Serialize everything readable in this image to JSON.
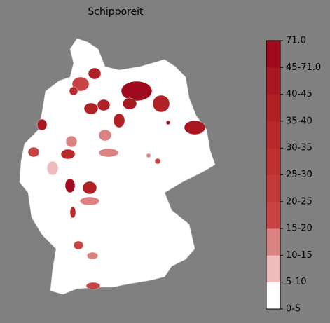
{
  "title": "Schipporeit",
  "legend": {
    "ticks": [
      "0-5",
      "5-10",
      "10-15",
      "15-20",
      "20-25",
      "25-30",
      "30-35",
      "35-40",
      "40-45",
      "45-71.0",
      "71.0"
    ],
    "colors": [
      "#ffffff",
      "#eebcbc",
      "#db8282",
      "#c84444",
      "#c43a3a",
      "#bf3131",
      "#b8292b",
      "#b02126",
      "#a71822",
      "#a00a1e"
    ]
  }
}
